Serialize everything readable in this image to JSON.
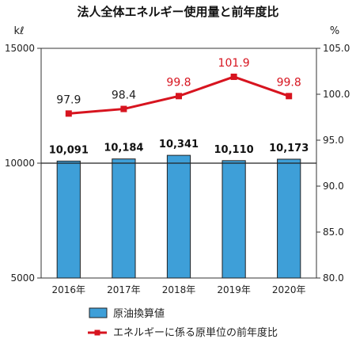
{
  "chart_data": {
    "type": "bar",
    "title": "法人全体エネルギー使用量と前年度比",
    "categories": [
      "2016年",
      "2017年",
      "2018年",
      "2019年",
      "2020年"
    ],
    "series": [
      {
        "name": "原油換算値",
        "type": "bar",
        "axis": "left",
        "values": [
          10091,
          10184,
          10341,
          10110,
          10173
        ],
        "value_labels": [
          "10,091",
          "10,184",
          "10,341",
          "10,110",
          "10,173"
        ],
        "color": "#3E9FD8"
      },
      {
        "name": "エネルギーに係る原単位の前年度比",
        "type": "line",
        "axis": "right",
        "values": [
          97.9,
          98.4,
          99.8,
          101.9,
          99.8
        ],
        "value_labels": [
          "97.9",
          "98.4",
          "99.8",
          "101.9",
          "99.8"
        ],
        "color": "#D7141F",
        "label_colors": [
          "#222222",
          "#222222",
          "#D7141F",
          "#D7141F",
          "#D7141F"
        ]
      }
    ],
    "left_axis": {
      "unit": "kℓ",
      "ylim": [
        5000,
        15000
      ],
      "ticks": [
        5000,
        10000,
        15000
      ],
      "tick_labels": [
        "5000",
        "10000",
        "15000"
      ]
    },
    "right_axis": {
      "unit": "%",
      "ylim": [
        80,
        105
      ],
      "ticks": [
        80,
        85,
        90,
        95,
        100,
        105
      ],
      "tick_labels": [
        "80.0",
        "85.0",
        "90.0",
        "95.0",
        "100.0",
        "105.0"
      ]
    },
    "reference_line": 10000,
    "grid": false,
    "legend_position": "bottom"
  }
}
